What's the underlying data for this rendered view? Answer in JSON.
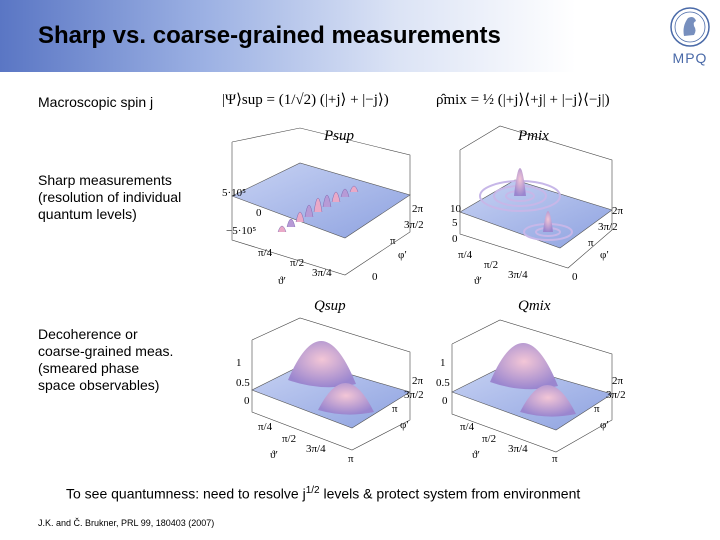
{
  "slide": {
    "title": "Sharp vs. coarse-grained measurements",
    "logo_text": "MPQ",
    "left_labels": {
      "spin": "Macroscopic spin j",
      "sharp": [
        "Sharp measurements",
        "(resolution of individual",
        "quantum levels)"
      ],
      "coarse": [
        "Decoherence or",
        "coarse-grained meas.",
        "(smeared phase",
        "space observables)"
      ]
    },
    "equations": {
      "sup": "|Ψ⟩sup = (1/√2) (|+j⟩ + |−j⟩)",
      "mix": "ρ̂mix = ½ (|+j⟩⟨+j| + |−j⟩⟨−j|)"
    },
    "plots": {
      "p_sup": {
        "title": "Psup",
        "z_ticks": [
          "5·10⁵",
          "0",
          "−5·10⁵"
        ]
      },
      "p_mix": {
        "title": "Pmix",
        "z_ticks": [
          "10",
          "5",
          "0"
        ]
      },
      "q_sup": {
        "title": "Qsup",
        "z_ticks": [
          "1",
          "0.5",
          "0"
        ]
      },
      "q_mix": {
        "title": "Qmix",
        "z_ticks": [
          "1",
          "0.5",
          "0"
        ]
      },
      "phi_ticks": [
        "2π",
        "3π/2",
        "π",
        "φ′"
      ],
      "theta_ticks": [
        "π/4",
        "π/2",
        "3π/4",
        "ϑ′"
      ],
      "axis_zero": "0",
      "axis_pi": "π"
    },
    "bottom_note": {
      "before": "To see quantumness: need to resolve j",
      "sup": "1/2",
      "after": " levels & protect system from environment"
    },
    "reference": "J.K. and Č. Brukner, PRL 99, 180403 (2007)",
    "colors": {
      "header_start": "#5a76c4",
      "surface": "#a9b8ea",
      "peak": "#e6a6c8"
    }
  }
}
